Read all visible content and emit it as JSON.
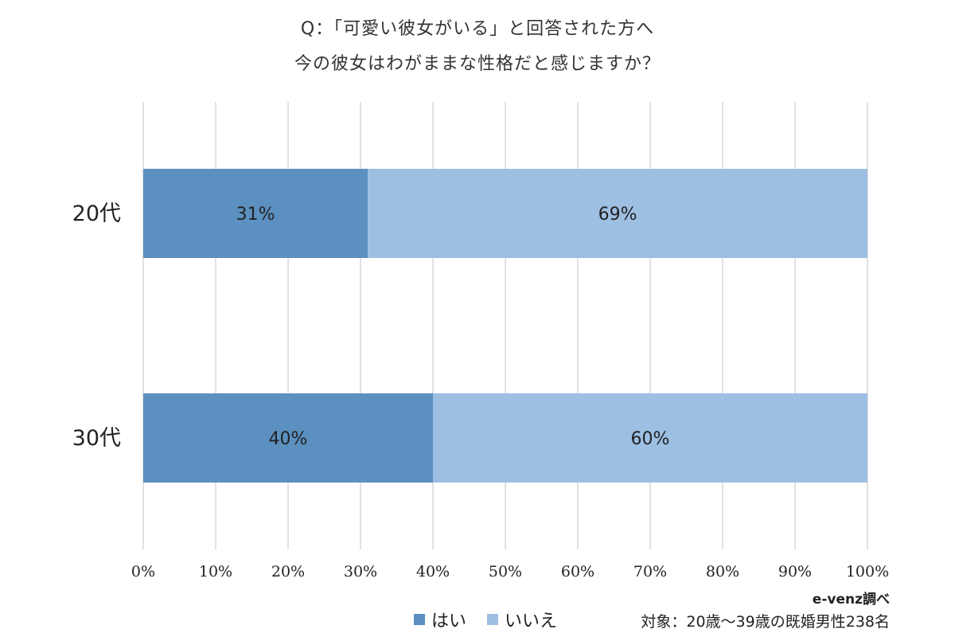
{
  "chart_data": {
    "type": "bar",
    "orientation": "horizontal",
    "stacked": true,
    "title_lines": [
      "Q：「可愛い彼女がいる」と回答された方へ",
      "今の彼女はわがままな性格だと感じますか？"
    ],
    "categories": [
      "20代",
      "30代"
    ],
    "series": [
      {
        "name": "はい",
        "values": [
          31,
          40
        ],
        "color": "#5b90c0"
      },
      {
        "name": "いいえ",
        "values": [
          69,
          60
        ],
        "color": "#9dbfe2"
      }
    ],
    "data_labels": [
      [
        "31%",
        "40%"
      ],
      [
        "69%",
        "60%"
      ]
    ],
    "x_ticks": [
      "0%",
      "10%",
      "20%",
      "30%",
      "40%",
      "50%",
      "60%",
      "70%",
      "80%",
      "90%",
      "100%"
    ],
    "xlim": [
      0,
      100
    ],
    "grid": true,
    "legend_position": "bottom"
  },
  "footer": {
    "credit": "e-venz調べ",
    "note": "対象：20歳〜39歳の既婚男性238名"
  }
}
